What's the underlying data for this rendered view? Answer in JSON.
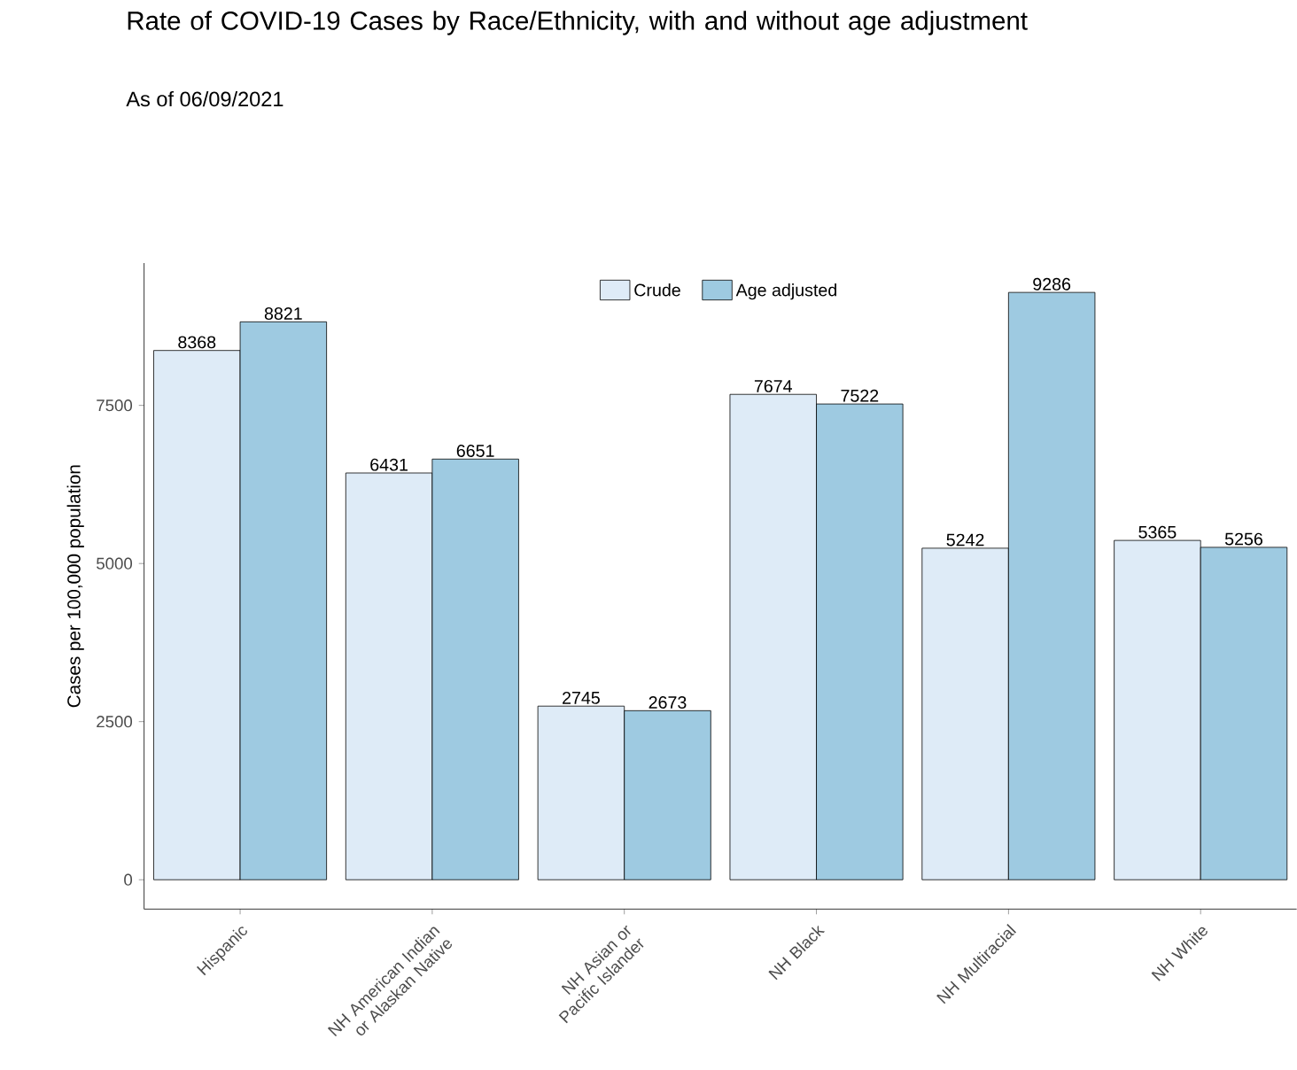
{
  "chart_data": {
    "type": "bar",
    "title": "Rate of COVID-19 Cases by Race/Ethnicity, with and without age adjustment",
    "subtitle": "As of 06/09/2021",
    "ylabel": "Cases per 100,000 population",
    "categories": [
      "Hispanic",
      "NH American Indian or Alaskan Native",
      "NH Asian or Pacific Islander",
      "NH Black",
      "NH Multiracial",
      "NH White"
    ],
    "series": [
      {
        "name": "Crude",
        "color": "#deebf7",
        "values": [
          8368,
          6431,
          2745,
          7674,
          5242,
          5365
        ]
      },
      {
        "name": "Age adjusted",
        "color": "#9ecae1",
        "values": [
          8821,
          6651,
          2673,
          7522,
          9286,
          5256
        ]
      }
    ],
    "ylim": [
      -464,
      9750
    ],
    "yticks": [
      0,
      2500,
      5000,
      7500
    ],
    "legend": "top",
    "data_labels": true
  }
}
